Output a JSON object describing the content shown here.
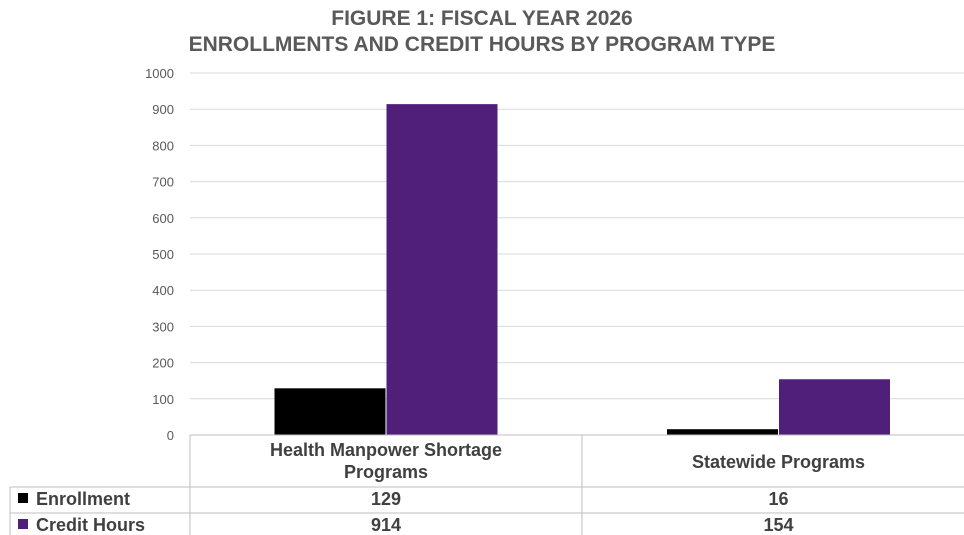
{
  "chart_data": {
    "type": "bar",
    "title_lines": [
      "FIGURE 1: FISCAL YEAR 2026",
      "ENROLLMENTS AND CREDIT HOURS BY PROGRAM TYPE"
    ],
    "categories": [
      [
        "Health Manpower Shortage",
        "Programs"
      ],
      [
        "Statewide Programs"
      ]
    ],
    "series": [
      {
        "name": "Enrollment",
        "color": "#000000",
        "values": [
          129,
          16
        ]
      },
      {
        "name": "Credit Hours",
        "color": "#4f1f7a",
        "values": [
          914,
          154
        ]
      }
    ],
    "ylim": [
      0,
      1000
    ],
    "yticks": [
      "0",
      "100",
      "200",
      "300",
      "400",
      "500",
      "600",
      "700",
      "800",
      "900",
      "1000"
    ],
    "grid": true,
    "legend": "data-table"
  }
}
